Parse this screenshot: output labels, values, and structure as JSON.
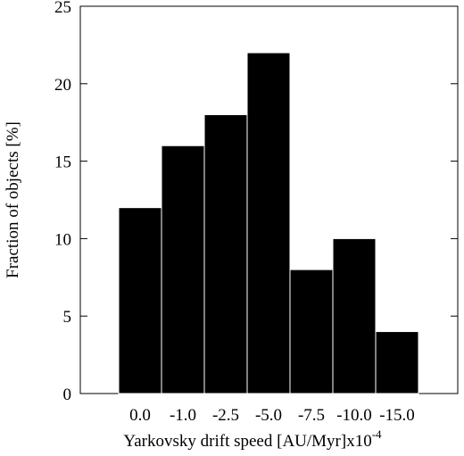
{
  "chart_data": {
    "type": "bar",
    "categories": [
      "0.0",
      "-1.0",
      "-2.5",
      "-5.0",
      "-7.5",
      "-10.0",
      "-15.0"
    ],
    "values": [
      12,
      16,
      18,
      22,
      8,
      10,
      4
    ],
    "title": "",
    "xlabel": "Yarkovsky drift speed [AU/Myr]x10",
    "xlabel_exponent": "-4",
    "ylabel": "Fraction of objects [%]",
    "ylim": [
      0,
      25
    ],
    "yticks": [
      0,
      5,
      10,
      15,
      20,
      25
    ],
    "grid": false,
    "bar_color": "#000000",
    "bar_edge_color": "#ffffff"
  }
}
